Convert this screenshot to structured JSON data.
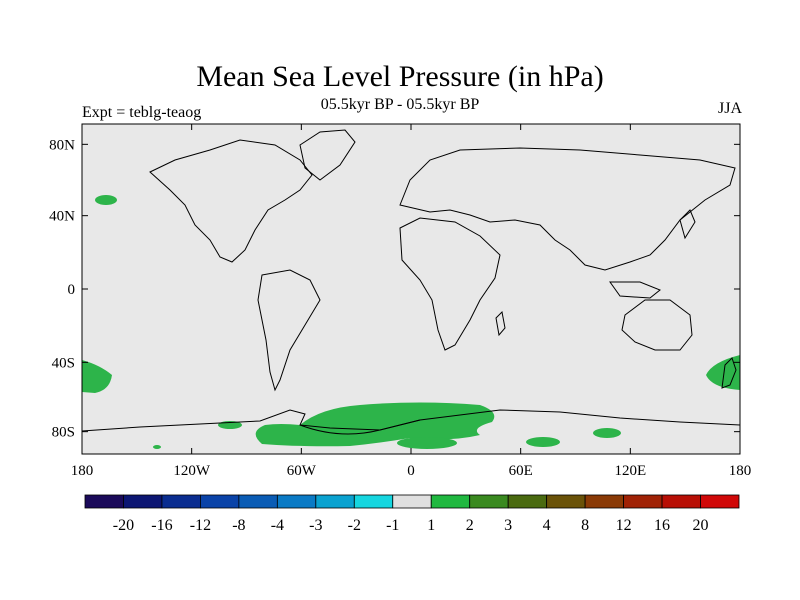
{
  "title": "Mean Sea Level Pressure (in hPa)",
  "subtitle": "05.5kyr BP - 05.5kyr BP",
  "left_label": "Expt = teblg-teaog",
  "right_label": "JJA",
  "map": {
    "lon_ticks": [
      "180",
      "120W",
      "60W",
      "0",
      "60E",
      "120E",
      "180"
    ],
    "lat_ticks": [
      "80N",
      "40N",
      "0",
      "40S",
      "80S"
    ],
    "background_color": "#e8e8e8",
    "anomaly_color": "#2db44a"
  },
  "colorbar": {
    "colors": [
      "#1b0a5a",
      "#0c1673",
      "#0a2d90",
      "#0a43a8",
      "#0a5cb5",
      "#0a7ac5",
      "#0aa2d0",
      "#16d6e0",
      "#e0e0e0",
      "#20b840",
      "#3a8a20",
      "#4a6a10",
      "#6a5208",
      "#8a3a06",
      "#a02205",
      "#b80f05",
      "#d00808"
    ],
    "labels": [
      "-20",
      "-16",
      "-12",
      "-8",
      "-4",
      "-3",
      "-2",
      "-1",
      "1",
      "2",
      "3",
      "4",
      "8",
      "12",
      "16",
      "20"
    ]
  }
}
